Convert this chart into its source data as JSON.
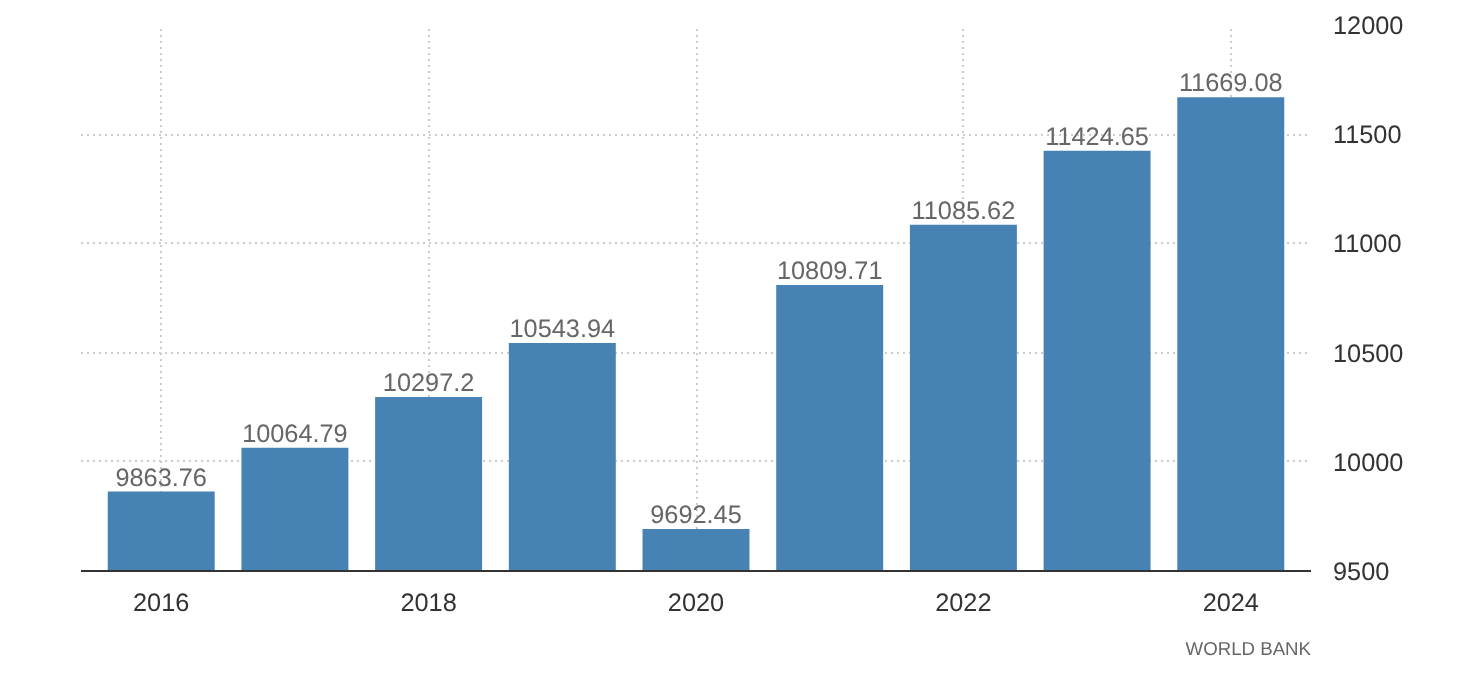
{
  "chart_data": {
    "type": "bar",
    "x": [
      2016,
      2017,
      2018,
      2019,
      2020,
      2021,
      2022,
      2023,
      2024
    ],
    "values": [
      9863.76,
      10064.79,
      10297.2,
      10543.94,
      9692.45,
      10809.71,
      11085.62,
      11424.65,
      11669.08
    ],
    "color": "#4682b4",
    "data_labels": true,
    "xlim": [
      2015.4,
      2024.6
    ],
    "xticks": [
      2016,
      2018,
      2020,
      2022,
      2024
    ],
    "ylim": [
      9500,
      12000
    ],
    "yticks": [
      9500,
      10000,
      10500,
      11000,
      11500,
      12000
    ],
    "grid": true,
    "annotations": [
      "WORLD BANK"
    ]
  }
}
